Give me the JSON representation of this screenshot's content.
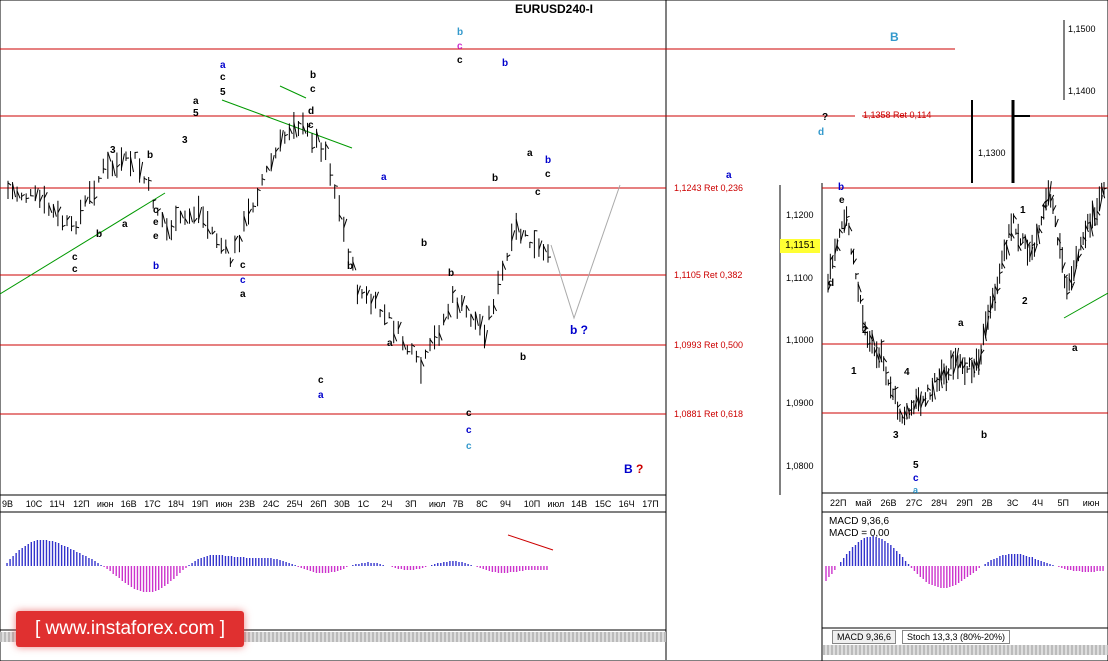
{
  "title": "EURUSD240-I",
  "chart_data": [
    {
      "type": "line",
      "title": "EURUSD240-I",
      "x_ticks": [
        "9В",
        "10С",
        "11Ч",
        "12П",
        "июн",
        "16В",
        "17С",
        "18Ч",
        "19П",
        "июн",
        "23В",
        "24С",
        "25Ч",
        "26П",
        "30В",
        "1С",
        "2Ч",
        "3П",
        "июл",
        "7В",
        "8С",
        "9Ч",
        "10П",
        "июл",
        "14В",
        "15С",
        "16Ч",
        "17П"
      ],
      "levels": [
        {
          "value": 1.1358,
          "label": "1,1358 Ret 0,114"
        },
        {
          "value": 1.1243,
          "label": "1,1243 Ret 0,236"
        },
        {
          "value": 1.1105,
          "label": "1,1105 Ret 0,382"
        },
        {
          "value": 1.0993,
          "label": "1,0993 Ret 0,500"
        },
        {
          "value": 1.0881,
          "label": "1,0881 Ret 0,618"
        }
      ],
      "right_price_labels": [
        "1,1500",
        "1,1400",
        "1,1300"
      ],
      "wave_labels": [
        "a",
        "c",
        "5",
        "3",
        "b",
        "d",
        "e",
        "B",
        "B ?",
        "b ?",
        "?",
        "d"
      ],
      "macd_label": "MACD 9,36,6"
    },
    {
      "type": "line",
      "x_ticks": [
        "22П",
        "май",
        "26В",
        "27С",
        "28Ч",
        "29П",
        "2В",
        "3С",
        "4Ч",
        "5П",
        "июн"
      ],
      "y_ticks": [
        "1,1200",
        "1,1100",
        "1,1000",
        "1,0900",
        "1,0800"
      ],
      "current_price": "1,1151",
      "wave_labels": [
        "b",
        "e",
        "d",
        "2",
        "1",
        "3",
        "4",
        "5",
        "c",
        "a",
        "b",
        "2",
        "1",
        "4"
      ],
      "macd_label": "MACD 9,36,6",
      "macd_value_label": "MACD = 0,00"
    }
  ],
  "tabs": [
    "MACD 9,36,6",
    "Stoch 13,3,3 (80%-20%)"
  ],
  "watermark": "[  www.instaforex.com  ]",
  "colors": {
    "level": "#cc0000",
    "wave_blue": "#0000cc",
    "macd_pos": "#3333cc",
    "macd_neg": "#cc33cc",
    "trend": "#009900"
  }
}
